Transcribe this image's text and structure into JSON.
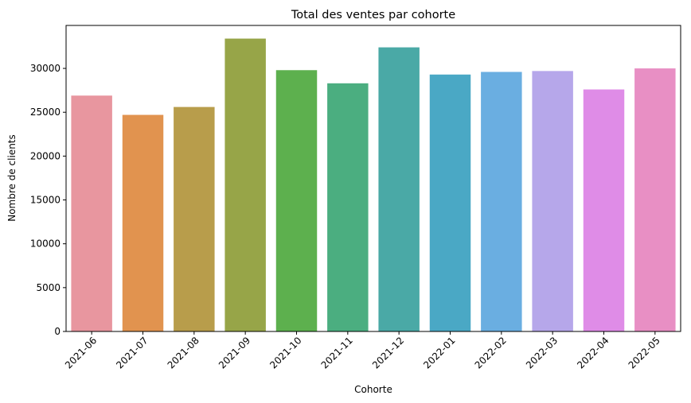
{
  "chart_data": {
    "type": "bar",
    "title": "Total des ventes par cohorte",
    "xlabel": "Cohorte",
    "ylabel": "Nombre de clients",
    "categories": [
      "2021-06",
      "2021-07",
      "2021-08",
      "2021-09",
      "2021-10",
      "2021-11",
      "2021-12",
      "2022-01",
      "2022-02",
      "2022-03",
      "2022-04",
      "2022-05"
    ],
    "values": [
      26900,
      24700,
      25600,
      33400,
      29800,
      28300,
      32400,
      29300,
      29600,
      29700,
      27600,
      30000
    ],
    "colors": [
      "#e8969f",
      "#e1934f",
      "#b89d4b",
      "#97a548",
      "#5db04e",
      "#4bae80",
      "#4aa9a6",
      "#4aa8c5",
      "#6aaee1",
      "#b6a7ea",
      "#df8ce7",
      "#e88fc4"
    ],
    "ylim": [
      0,
      34900
    ],
    "yticks": [
      0,
      5000,
      10000,
      15000,
      20000,
      25000,
      30000
    ],
    "grid": false,
    "legend": "none",
    "xtick_rotation": 45
  }
}
